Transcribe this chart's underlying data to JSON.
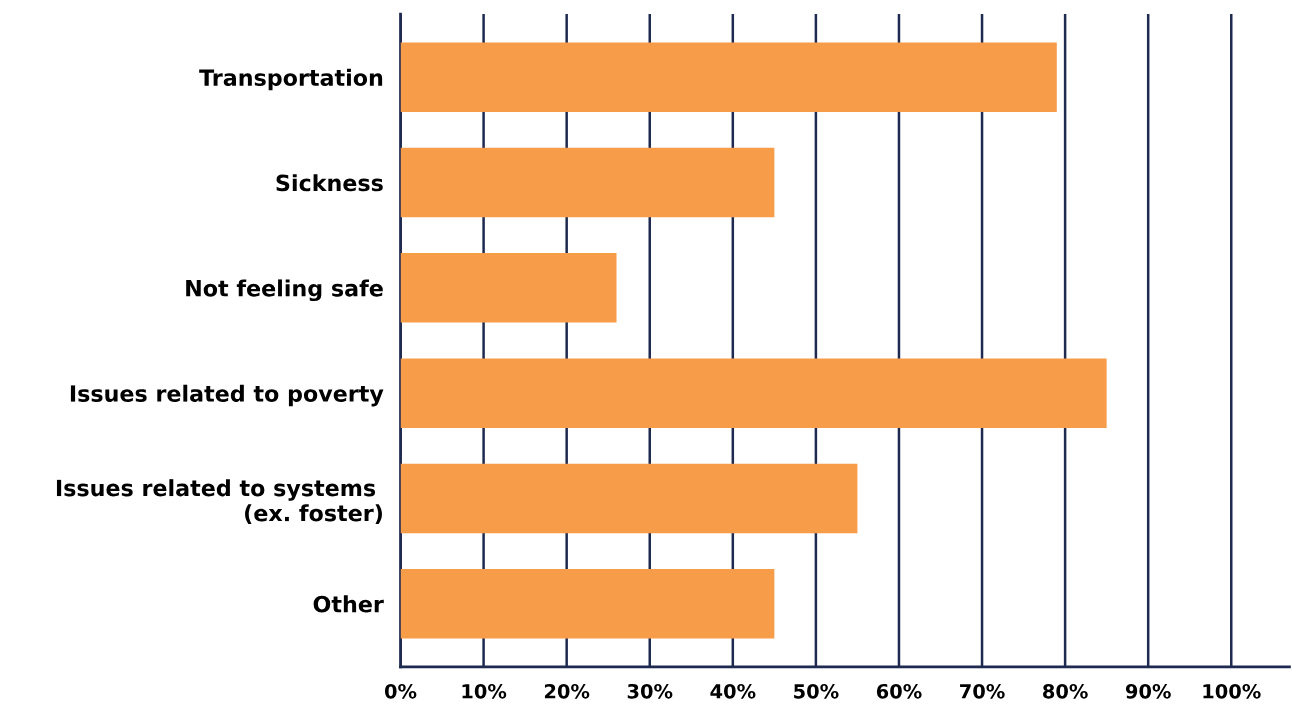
{
  "chart_data": {
    "type": "bar",
    "orientation": "horizontal",
    "categories": [
      "Transportation",
      "Sickness",
      "Not feeling safe",
      "Issues related to poverty",
      "Issues related to systems \n(ex. foster)",
      "Other"
    ],
    "values": [
      79,
      45,
      26,
      85,
      55,
      45
    ],
    "color": "#f79c48",
    "xlim": [
      0,
      107
    ],
    "xticks": [
      {
        "value": 0,
        "label": "0%"
      },
      {
        "value": 10,
        "label": "10%"
      },
      {
        "value": 20,
        "label": "20%"
      },
      {
        "value": 30,
        "label": "30%"
      },
      {
        "value": 40,
        "label": "40%"
      },
      {
        "value": 50,
        "label": "50%"
      },
      {
        "value": 60,
        "label": "60%"
      },
      {
        "value": 70,
        "label": "70%"
      },
      {
        "value": 80,
        "label": "80%"
      },
      {
        "value": 90,
        "label": "90%"
      },
      {
        "value": 100,
        "label": "100%"
      }
    ],
    "grid": "x"
  }
}
